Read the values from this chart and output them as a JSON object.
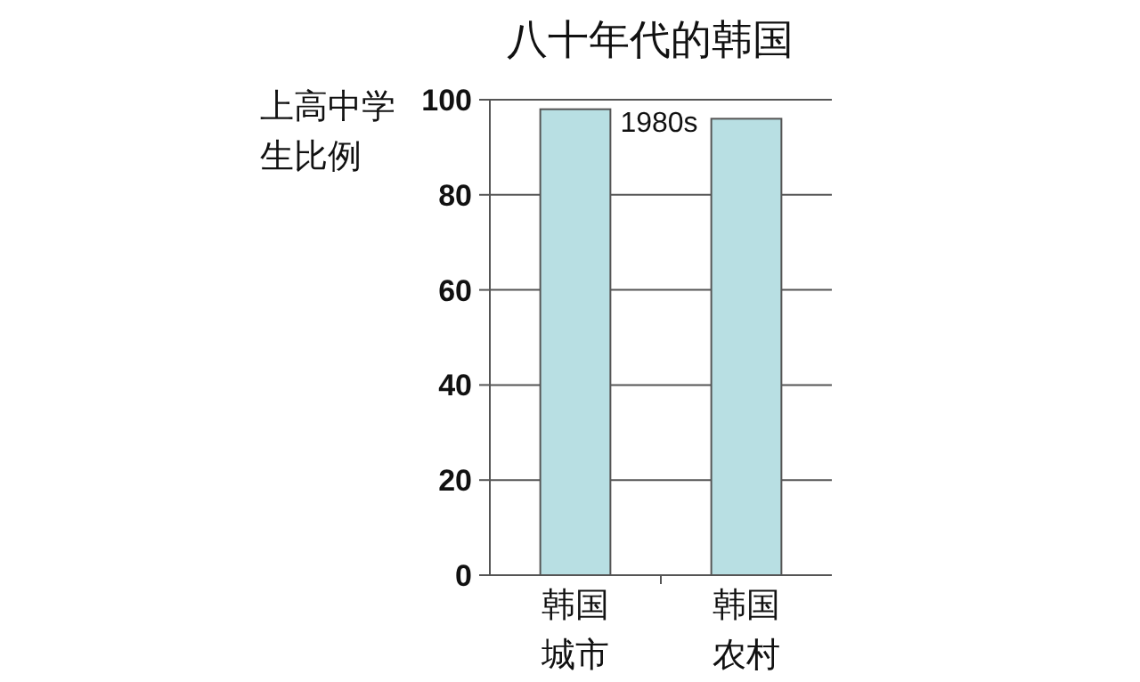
{
  "chart_data": {
    "type": "bar",
    "title": "八十年代的韩国",
    "ylabel": "上高中学生比例",
    "annotations": [
      "1980s"
    ],
    "categories": [
      "韩国城市",
      "韩国农村"
    ],
    "values": [
      98,
      96
    ],
    "color": "#b8dfe3",
    "ylim": [
      0,
      100
    ],
    "yticks": [
      0,
      20,
      40,
      60,
      80,
      100
    ],
    "grid": "y"
  }
}
